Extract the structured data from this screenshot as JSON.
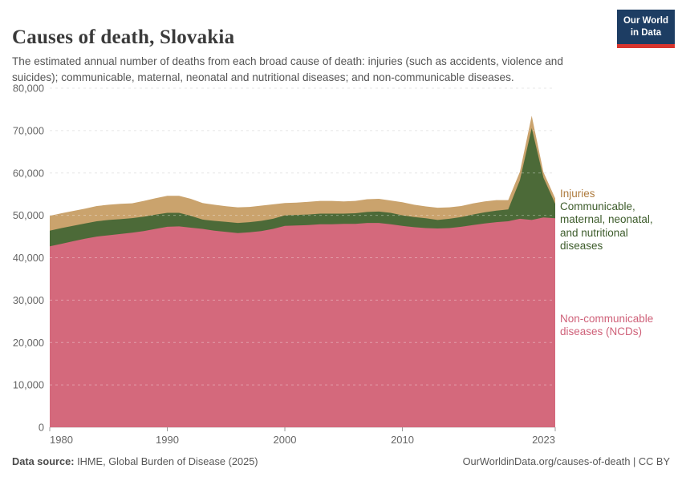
{
  "header": {
    "title": "Causes of death, Slovakia",
    "subtitle": "The estimated annual number of deaths from each broad cause of death: injuries (such as accidents, violence and suicides); communicable, maternal, neonatal and nutritional diseases; and non-communicable diseases.",
    "logo_line1": "Our World",
    "logo_line2": "in Data"
  },
  "colors": {
    "background": "#ffffff",
    "title_text": "#3a3a3a",
    "subtitle_text": "#555555",
    "axis_text": "#666666",
    "gridline": "#dcdcdc",
    "tick_mark": "#999999",
    "logo_bg": "#1d3d63",
    "logo_stripe": "#d8352e",
    "injuries_area": "#caa36d",
    "communicable_area": "#4c6a38",
    "ncd_area": "#d4697c",
    "injuries_label": "#ae7b3e",
    "communicable_label": "#3d5c2b",
    "ncd_label": "#cf6179"
  },
  "chart_data": {
    "type": "area",
    "stacked": true,
    "title": "Causes of death, Slovakia",
    "xlabel": "",
    "ylabel": "",
    "ylim": [
      0,
      80000
    ],
    "grid": "horizontal-dashed",
    "legend_position": "right",
    "x": [
      1980,
      1981,
      1982,
      1983,
      1984,
      1985,
      1986,
      1987,
      1988,
      1989,
      1990,
      1991,
      1992,
      1993,
      1994,
      1995,
      1996,
      1997,
      1998,
      1999,
      2000,
      2001,
      2002,
      2003,
      2004,
      2005,
      2006,
      2007,
      2008,
      2009,
      2010,
      2011,
      2012,
      2013,
      2014,
      2015,
      2016,
      2017,
      2018,
      2019,
      2020,
      2021,
      2022,
      2023
    ],
    "x_ticks": [
      1980,
      1990,
      2000,
      2010,
      2023
    ],
    "y_ticks": [
      0,
      10000,
      20000,
      30000,
      40000,
      50000,
      60000,
      70000,
      80000
    ],
    "y_tick_labels": [
      "0",
      "10,000",
      "20,000",
      "30,000",
      "40,000",
      "50,000",
      "60,000",
      "70,000",
      "80,000"
    ],
    "series": [
      {
        "name": "Non-communicable diseases (NCDs)",
        "color": "#d4697c",
        "values": [
          42700,
          43300,
          43900,
          44500,
          45000,
          45300,
          45600,
          45900,
          46300,
          46800,
          47300,
          47400,
          47100,
          46800,
          46400,
          46100,
          45800,
          46000,
          46300,
          46800,
          47500,
          47600,
          47700,
          47900,
          47900,
          48000,
          48000,
          48200,
          48200,
          47900,
          47500,
          47200,
          47000,
          46900,
          47000,
          47300,
          47700,
          48100,
          48400,
          48600,
          49200,
          48900,
          49500,
          49300
        ]
      },
      {
        "name": "Communicable, maternal, neonatal, and nutritional diseases",
        "color": "#4c6a38",
        "values": [
          3700,
          3700,
          3650,
          3600,
          3600,
          3600,
          3500,
          3450,
          3400,
          3350,
          3300,
          3200,
          2800,
          2200,
          2300,
          2350,
          2400,
          2400,
          2400,
          2400,
          2500,
          2500,
          2500,
          2500,
          2500,
          2400,
          2500,
          2600,
          2700,
          2700,
          2500,
          2400,
          2300,
          2000,
          2200,
          2300,
          2500,
          2600,
          2700,
          2800,
          9100,
          21700,
          9400,
          3400
        ]
      },
      {
        "name": "Injuries",
        "color": "#caa36d",
        "values": [
          3500,
          3500,
          3500,
          3500,
          3600,
          3600,
          3600,
          3500,
          3700,
          3900,
          4000,
          4000,
          4000,
          3900,
          3800,
          3700,
          3700,
          3600,
          3600,
          3400,
          2900,
          2900,
          3000,
          3000,
          3000,
          2900,
          2900,
          3000,
          3000,
          2900,
          3100,
          2900,
          2800,
          2900,
          2700,
          2600,
          2600,
          2600,
          2500,
          2200,
          2000,
          2900,
          1300,
          1300
        ]
      }
    ]
  },
  "legend": {
    "injuries": "Injuries",
    "communicable": "Communicable, maternal, neonatal, and nutritional diseases",
    "ncd": "Non-communicable diseases (NCDs)"
  },
  "footer": {
    "source_label": "Data source:",
    "source_text": "IHME, Global Burden of Disease (2025)",
    "link_text": "OurWorldinData.org/causes-of-death | CC BY"
  }
}
